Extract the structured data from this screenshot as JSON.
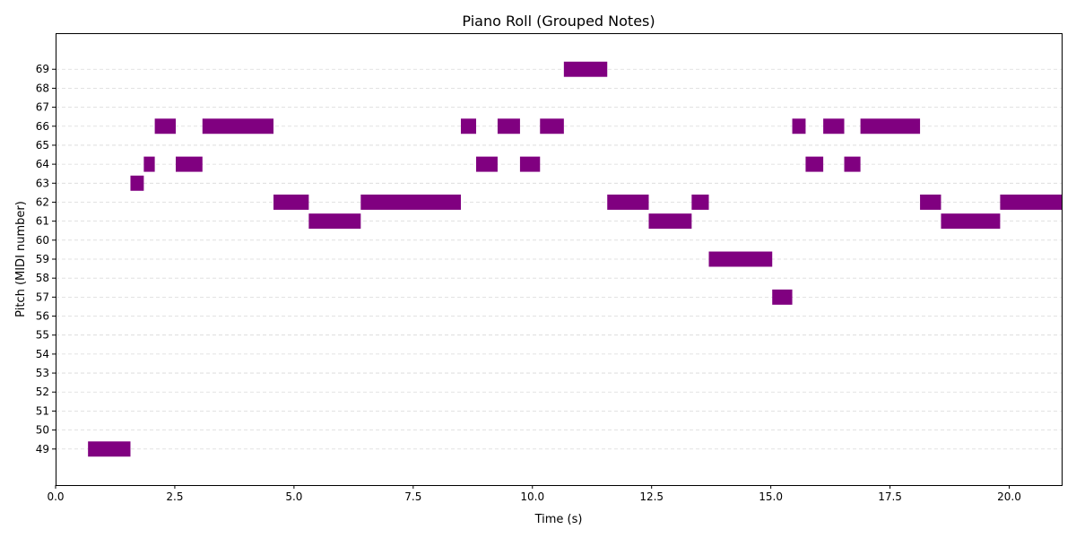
{
  "chart_data": {
    "type": "piano-roll",
    "title": "Piano Roll (Grouped Notes)",
    "xlabel": "Time (s)",
    "ylabel": "Pitch (MIDI number)",
    "xlim": [
      0,
      21.1
    ],
    "ylim": [
      47.1,
      70.9
    ],
    "xticks": [
      0.0,
      2.5,
      5.0,
      7.5,
      10.0,
      12.5,
      15.0,
      17.5,
      20.0
    ],
    "xtick_labels": [
      "0.0",
      "2.5",
      "5.0",
      "7.5",
      "10.0",
      "12.5",
      "15.0",
      "17.5",
      "20.0"
    ],
    "yticks": [
      49,
      50,
      51,
      52,
      53,
      54,
      55,
      56,
      57,
      58,
      59,
      60,
      61,
      62,
      63,
      64,
      65,
      66,
      67,
      68,
      69
    ],
    "grid": "horizontal dashed",
    "color": "#800080",
    "notes": [
      {
        "start": 0.68,
        "end": 1.57,
        "pitch": 49
      },
      {
        "start": 1.57,
        "end": 1.85,
        "pitch": 63
      },
      {
        "start": 1.85,
        "end": 2.08,
        "pitch": 64
      },
      {
        "start": 2.08,
        "end": 2.52,
        "pitch": 66
      },
      {
        "start": 2.52,
        "end": 3.08,
        "pitch": 64
      },
      {
        "start": 3.08,
        "end": 4.57,
        "pitch": 66
      },
      {
        "start": 4.57,
        "end": 5.31,
        "pitch": 62
      },
      {
        "start": 5.31,
        "end": 6.4,
        "pitch": 61
      },
      {
        "start": 6.4,
        "end": 8.5,
        "pitch": 62
      },
      {
        "start": 8.5,
        "end": 8.82,
        "pitch": 66
      },
      {
        "start": 8.82,
        "end": 9.27,
        "pitch": 64
      },
      {
        "start": 9.27,
        "end": 9.74,
        "pitch": 66
      },
      {
        "start": 9.74,
        "end": 10.16,
        "pitch": 64
      },
      {
        "start": 10.16,
        "end": 10.66,
        "pitch": 66
      },
      {
        "start": 10.66,
        "end": 11.57,
        "pitch": 69
      },
      {
        "start": 11.57,
        "end": 12.44,
        "pitch": 62
      },
      {
        "start": 12.44,
        "end": 13.34,
        "pitch": 61
      },
      {
        "start": 13.34,
        "end": 13.7,
        "pitch": 62
      },
      {
        "start": 13.7,
        "end": 15.03,
        "pitch": 59
      },
      {
        "start": 15.03,
        "end": 15.45,
        "pitch": 57
      },
      {
        "start": 15.45,
        "end": 15.73,
        "pitch": 66
      },
      {
        "start": 15.73,
        "end": 16.1,
        "pitch": 64
      },
      {
        "start": 16.1,
        "end": 16.54,
        "pitch": 66
      },
      {
        "start": 16.54,
        "end": 16.88,
        "pitch": 64
      },
      {
        "start": 16.88,
        "end": 18.13,
        "pitch": 66
      },
      {
        "start": 18.13,
        "end": 18.57,
        "pitch": 62
      },
      {
        "start": 18.57,
        "end": 19.81,
        "pitch": 61
      },
      {
        "start": 19.81,
        "end": 21.1,
        "pitch": 62
      }
    ]
  }
}
